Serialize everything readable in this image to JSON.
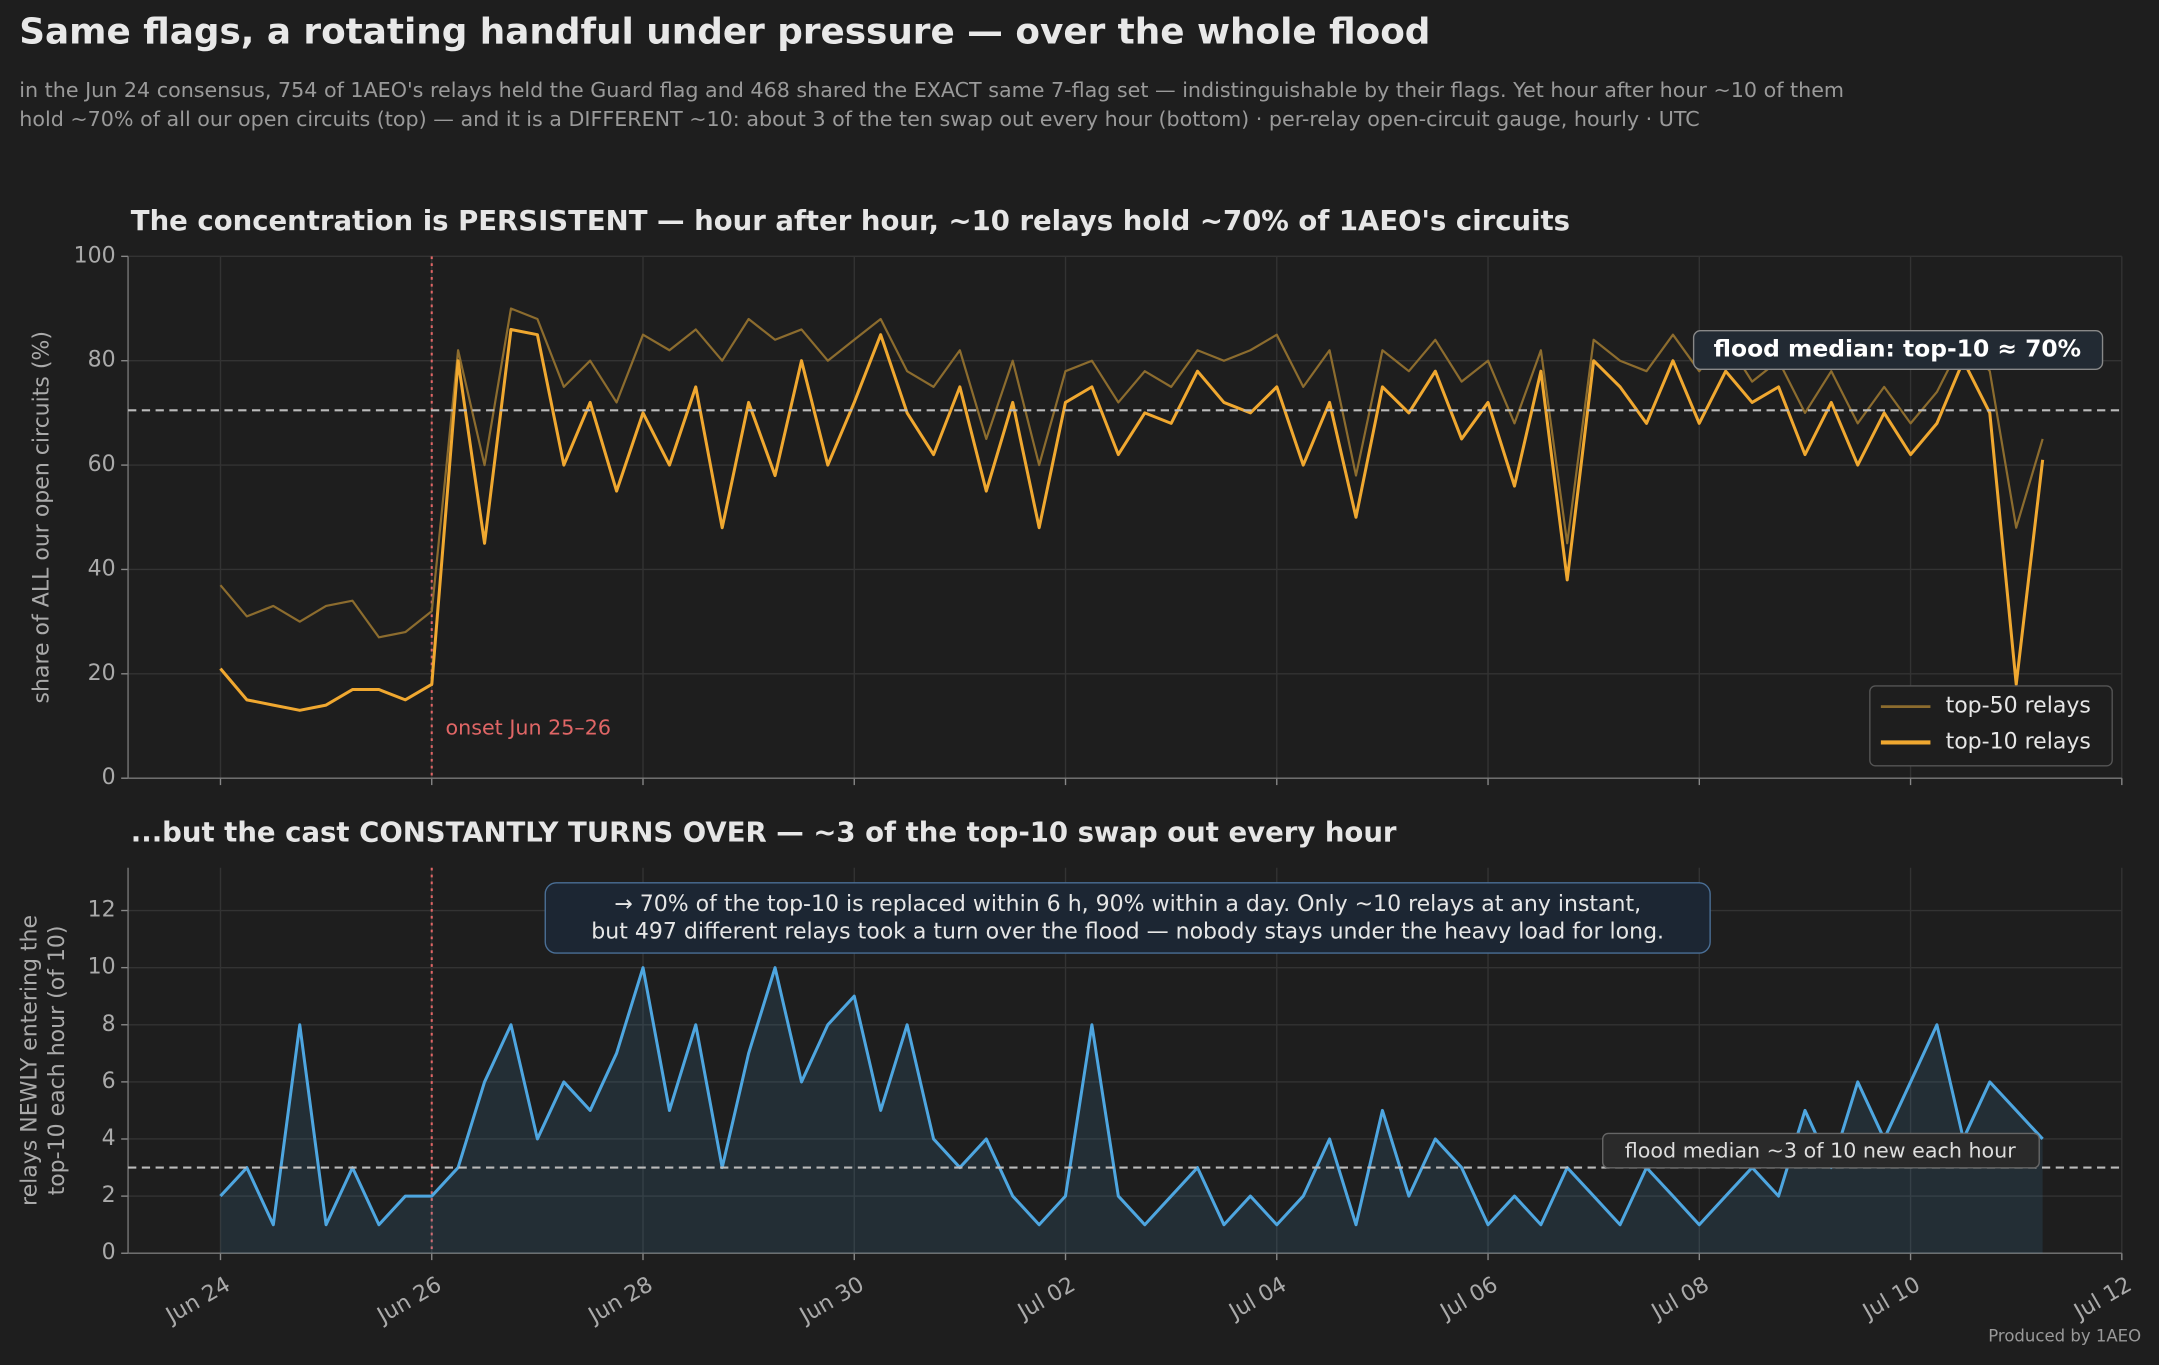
{
  "header": {
    "title": "Same flags, a rotating handful under pressure — over the whole flood",
    "subtitle": [
      "in the Jun 24 consensus, 754 of 1AEO's relays held the Guard flag and 468 shared the EXACT same 7-flag set — indistinguishable by their flags. Yet hour after hour ~10 of them",
      "hold ~70% of all our open circuits (top) — and it is a DIFFERENT ~10: about 3 of the ten swap out every hour (bottom) · per-relay open-circuit gauge, hourly · UTC"
    ],
    "footer": "Produced by 1AEO"
  },
  "chart_data": [
    {
      "type": "line",
      "title": "The concentration is PERSISTENT — hour after hour, ~10 relays hold ~70% of 1AEO's circuits",
      "ylabel": "share of ALL our open circuits (%)",
      "ylim": [
        0,
        100
      ],
      "yticks": [
        0,
        20,
        40,
        60,
        80,
        100
      ],
      "grid": true,
      "onset_label": "onset Jun 25–26",
      "median": 70.5,
      "median_label": "flood median: top-10 ≈ 70%",
      "legend": "lower right",
      "series": [
        {
          "name": "top-50 relays",
          "color": "#8c6c2e",
          "values": [
            37,
            31,
            33,
            30,
            33,
            34,
            27,
            28,
            32,
            82,
            60,
            90,
            88,
            75,
            80,
            72,
            85,
            82,
            86,
            80,
            88,
            84,
            86,
            80,
            84,
            88,
            78,
            75,
            82,
            65,
            80,
            60,
            78,
            80,
            72,
            78,
            75,
            82,
            80,
            82,
            85,
            75,
            82,
            58,
            82,
            78,
            84,
            76,
            80,
            68,
            82,
            45,
            84,
            80,
            78,
            85,
            78,
            84,
            76,
            80,
            70,
            78,
            68,
            75,
            68,
            74,
            84,
            78,
            48,
            65
          ]
        },
        {
          "name": "top-10 relays",
          "color": "#f0a830",
          "values": [
            21,
            15,
            14,
            13,
            14,
            17,
            17,
            15,
            18,
            80,
            45,
            86,
            85,
            60,
            72,
            55,
            70,
            60,
            75,
            48,
            72,
            58,
            80,
            60,
            72,
            85,
            70,
            62,
            75,
            55,
            72,
            48,
            72,
            75,
            62,
            70,
            68,
            78,
            72,
            70,
            75,
            60,
            72,
            50,
            75,
            70,
            78,
            65,
            72,
            56,
            78,
            38,
            80,
            75,
            68,
            80,
            68,
            78,
            72,
            75,
            62,
            72,
            60,
            70,
            62,
            68,
            80,
            70,
            18,
            61
          ]
        }
      ]
    },
    {
      "type": "line",
      "title": "...but the cast CONSTANTLY TURNS OVER — ~3 of the top-10 swap out every hour",
      "ylabel": [
        "relays NEWLY entering the",
        "top-10 each hour (of 10)"
      ],
      "ylim": [
        0,
        13.5
      ],
      "yticks": [
        0,
        2,
        4,
        6,
        8,
        10,
        12
      ],
      "grid": true,
      "median": 3,
      "median_label": "flood median ~3 of 10 new each hour",
      "note": [
        "→ 70% of the top-10 is replaced within 6 h, 90% within a day. Only ~10 relays at any instant,",
        "but 497 different relays took a turn over the flood — nobody stays under the heavy load for long."
      ],
      "x": [
        "Jun 24 00:00",
        "Jun 24 06:00",
        "Jun 24 12:00",
        "Jun 24 18:00",
        "Jun 25 00:00",
        "Jun 25 06:00",
        "Jun 25 12:00",
        "Jun 25 18:00",
        "Jun 26 00:00",
        "Jun 26 06:00",
        "Jun 26 12:00",
        "Jun 26 18:00",
        "Jun 27 00:00",
        "Jun 27 06:00",
        "Jun 27 12:00",
        "Jun 27 18:00",
        "Jun 28 00:00",
        "Jun 28 06:00",
        "Jun 28 12:00",
        "Jun 28 18:00",
        "Jun 29 00:00",
        "Jun 29 06:00",
        "Jun 29 12:00",
        "Jun 29 18:00",
        "Jun 30 00:00",
        "Jun 30 06:00",
        "Jun 30 12:00",
        "Jun 30 18:00",
        "Jul 01 00:00",
        "Jul 01 06:00",
        "Jul 01 12:00",
        "Jul 01 18:00",
        "Jul 02 00:00",
        "Jul 02 06:00",
        "Jul 02 12:00",
        "Jul 02 18:00",
        "Jul 03 00:00",
        "Jul 03 06:00",
        "Jul 03 12:00",
        "Jul 03 18:00",
        "Jul 04 00:00",
        "Jul 04 06:00",
        "Jul 04 12:00",
        "Jul 04 18:00",
        "Jul 05 00:00",
        "Jul 05 06:00",
        "Jul 05 12:00",
        "Jul 05 18:00",
        "Jul 06 00:00",
        "Jul 06 06:00",
        "Jul 06 12:00",
        "Jul 06 18:00",
        "Jul 07 00:00",
        "Jul 07 06:00",
        "Jul 07 12:00",
        "Jul 07 18:00",
        "Jul 08 00:00",
        "Jul 08 06:00",
        "Jul 08 12:00",
        "Jul 08 18:00",
        "Jul 09 00:00",
        "Jul 09 06:00",
        "Jul 09 12:00",
        "Jul 09 18:00",
        "Jul 10 00:00",
        "Jul 10 06:00",
        "Jul 10 12:00",
        "Jul 10 18:00",
        "Jul 11 00:00",
        "Jul 11 06:00"
      ],
      "xlim": [
        "Jun 23 03:00",
        "Jul 12 00:00"
      ],
      "xticks": [
        "Jun 24",
        "Jun 26",
        "Jun 28",
        "Jun 30",
        "Jul 02",
        "Jul 04",
        "Jul 06",
        "Jul 08",
        "Jul 10",
        "Jul 12"
      ],
      "series": [
        {
          "name": "new in top-10",
          "color": "#4ea6e0",
          "fill": true,
          "values": [
            2,
            3,
            1,
            8,
            1,
            3,
            1,
            2,
            2,
            3,
            6,
            8,
            4,
            6,
            5,
            7,
            10,
            5,
            8,
            3,
            7,
            10,
            6,
            8,
            9,
            5,
            8,
            4,
            3,
            4,
            2,
            1,
            2,
            8,
            2,
            1,
            2,
            3,
            1,
            2,
            1,
            2,
            4,
            1,
            5,
            2,
            4,
            3,
            1,
            2,
            1,
            3,
            2,
            1,
            3,
            2,
            1,
            2,
            3,
            2,
            5,
            3,
            6,
            4,
            6,
            8,
            4,
            6,
            5,
            4
          ]
        }
      ]
    }
  ]
}
